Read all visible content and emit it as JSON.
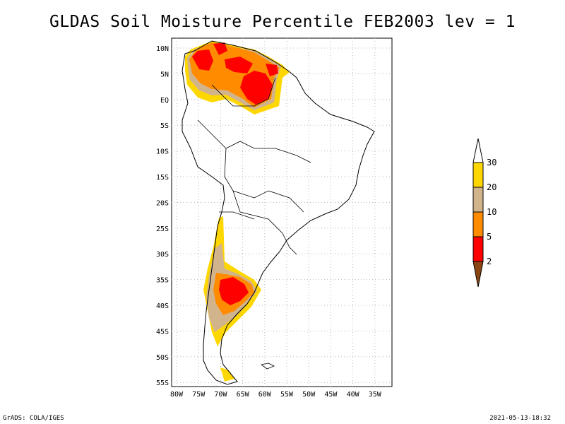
{
  "title": "GLDAS Soil Moisture Percentile FEB2003 lev = 1",
  "footer": {
    "left": "GrADS: COLA/IGES",
    "right": "2021-05-13-18:32"
  },
  "axes": {
    "lon_labels": [
      "80W",
      "75W",
      "70W",
      "65W",
      "60W",
      "55W",
      "50W",
      "45W",
      "40W",
      "35W"
    ],
    "lat_labels": [
      "10N",
      "5N",
      "EQ",
      "5S",
      "10S",
      "15S",
      "20S",
      "25S",
      "30S",
      "35S",
      "40S",
      "45S",
      "50S",
      "55S"
    ]
  },
  "colorbar": {
    "labels": [
      "30",
      "20",
      "10",
      "5",
      "2"
    ],
    "colors": {
      "above_30": "#ffffff",
      "20_30": "#ffd700",
      "10_20": "#d2b48c",
      "5_10": "#ff8c00",
      "2_5": "#ff0000",
      "below_2": "#8b4513"
    }
  },
  "regions": [
    {
      "name": "northern-south-america",
      "category": "2-5"
    },
    {
      "name": "central-argentina",
      "category": "2-5"
    },
    {
      "name": "southern-chile-patagonia",
      "category": "20-30"
    }
  ]
}
